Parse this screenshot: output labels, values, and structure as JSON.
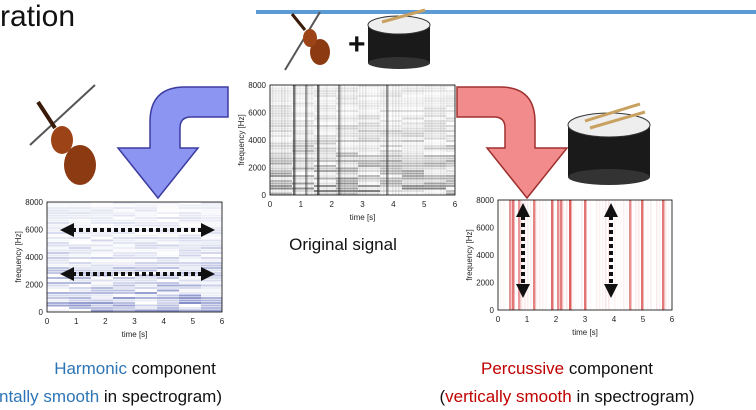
{
  "title": "ration",
  "original": {
    "yticks": [
      "8000",
      "6000",
      "4000",
      "2000",
      "0"
    ],
    "xticks": [
      "0",
      "1",
      "2",
      "3",
      "4",
      "5",
      "6"
    ],
    "xlabel": "time [s]",
    "ylabel": "frequency [Hz]",
    "caption": "Original signal"
  },
  "harmonic": {
    "yticks": [
      "8000",
      "6000",
      "4000",
      "2000",
      "0"
    ],
    "xticks": [
      "0",
      "1",
      "2",
      "3",
      "4",
      "5",
      "6"
    ],
    "xlabel": "time [s]",
    "ylabel": "frequency [Hz]",
    "caption_line1": [
      {
        "text": "Harmonic",
        "color": "#2e75b6"
      },
      {
        "text": " component",
        "color": "#111111"
      }
    ],
    "caption_line2": [
      {
        "text": "ntally smooth",
        "color": "#2e75b6"
      },
      {
        "text": " in spectrogram)",
        "color": "#111111"
      }
    ]
  },
  "percussive": {
    "yticks": [
      "8000",
      "6000",
      "4000",
      "2000",
      "0"
    ],
    "xticks": [
      "0",
      "1",
      "2",
      "3",
      "4",
      "5",
      "6"
    ],
    "xlabel": "time [s]",
    "ylabel": "frequency [Hz]",
    "caption_line1": [
      {
        "text": "Percussive",
        "color": "#c00000"
      },
      {
        "text": " component",
        "color": "#111111"
      }
    ],
    "caption_line2": [
      {
        "text": "(",
        "color": "#111111"
      },
      {
        "text": "vertically smooth",
        "color": "#c00000"
      },
      {
        "text": " in spectrogram)",
        "color": "#111111"
      }
    ]
  }
}
